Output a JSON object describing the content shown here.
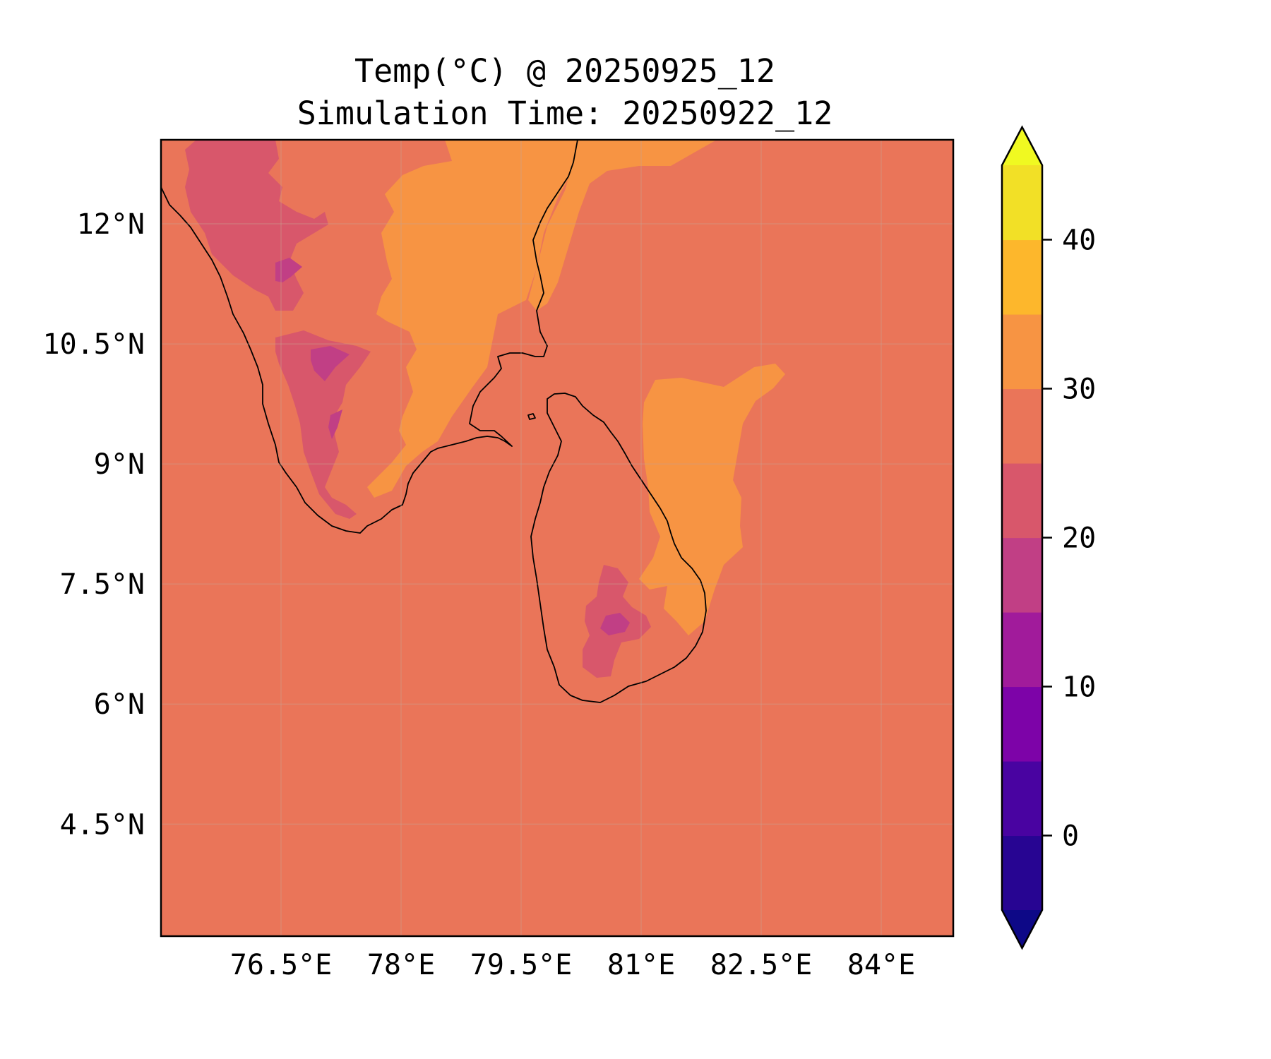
{
  "title": {
    "line1": "Temp(°C) @ 20250925_12",
    "line2": "Simulation Time: 20250922_12"
  },
  "map": {
    "lon_range": [
      75.0,
      84.9
    ],
    "lat_range": [
      3.1,
      13.05
    ],
    "lon_ticks": [
      {
        "value": 76.5,
        "label": "76.5°E"
      },
      {
        "value": 78.0,
        "label": "78°E"
      },
      {
        "value": 79.5,
        "label": "79.5°E"
      },
      {
        "value": 81.0,
        "label": "81°E"
      },
      {
        "value": 82.5,
        "label": "82.5°E"
      },
      {
        "value": 84.0,
        "label": "84°E"
      }
    ],
    "lat_ticks": [
      {
        "value": 12.0,
        "label": "12°N"
      },
      {
        "value": 10.5,
        "label": "10.5°N"
      },
      {
        "value": 9.0,
        "label": "9°N"
      },
      {
        "value": 7.5,
        "label": "7.5°N"
      },
      {
        "value": 6.0,
        "label": "6°N"
      },
      {
        "value": 4.5,
        "label": "4.5°N"
      }
    ],
    "background_color": "#ea7559",
    "gridlines": true
  },
  "colorbar": {
    "range": [
      -5,
      45
    ],
    "extend": "both",
    "under_color": "#0d0887",
    "over_color": "#f0f921",
    "levels": [
      {
        "from": -5,
        "to": 0,
        "color": "#270592"
      },
      {
        "from": 0,
        "to": 5,
        "color": "#4903a1"
      },
      {
        "from": 5,
        "to": 10,
        "color": "#7d03a8"
      },
      {
        "from": 10,
        "to": 15,
        "color": "#a11b9b"
      },
      {
        "from": 15,
        "to": 20,
        "color": "#c13f85"
      },
      {
        "from": 20,
        "to": 25,
        "color": "#d8576b"
      },
      {
        "from": 25,
        "to": 30,
        "color": "#ea7559"
      },
      {
        "from": 30,
        "to": 35,
        "color": "#f79443"
      },
      {
        "from": 35,
        "to": 40,
        "color": "#fdb72c"
      },
      {
        "from": 40,
        "to": 45,
        "color": "#f2e026"
      }
    ],
    "ticks": [
      {
        "value": 0,
        "label": "0"
      },
      {
        "value": 10,
        "label": "10"
      },
      {
        "value": 20,
        "label": "20"
      },
      {
        "value": 30,
        "label": "30"
      },
      {
        "value": 40,
        "label": "40"
      }
    ]
  }
}
